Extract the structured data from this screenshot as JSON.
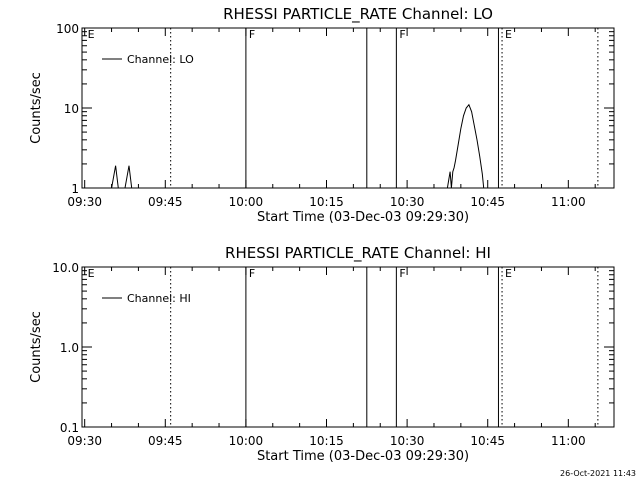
{
  "timestamp": "26-Oct-2021 11:43",
  "chart_data": [
    {
      "type": "line",
      "title": "RHESSI PARTICLE_RATE Channel: LO",
      "xlabel": "Start Time (03-Dec-03 09:29:30)",
      "ylabel": "Counts/sec",
      "yscale": "log",
      "xlim": [
        "09:29:30",
        "11:08:30"
      ],
      "ylim": [
        1,
        100
      ],
      "xticks": [
        "09:30",
        "09:45",
        "10:00",
        "10:15",
        "10:30",
        "10:45",
        "11:00"
      ],
      "yticks": [
        "1",
        "10",
        "100"
      ],
      "legend": {
        "placement": "top-left",
        "entries": [
          "Channel: LO"
        ]
      },
      "series": [
        {
          "name": "Channel: LO",
          "x": [
            "09:29:30",
            "09:35:00",
            "09:35:45",
            "09:36:15",
            "09:36:45",
            "09:37:30",
            "09:38:15",
            "09:38:45",
            "09:39:15",
            "09:40:00",
            "10:37:30",
            "10:38:00",
            "10:38:15",
            "10:38:30",
            "10:38:45",
            "10:39:00",
            "10:39:30",
            "10:40:00",
            "10:40:30",
            "10:41:00",
            "10:41:30",
            "10:42:00",
            "10:42:30",
            "10:43:00",
            "10:43:30",
            "10:44:00",
            "10:44:15",
            "10:44:30",
            "10:44:45",
            "10:45:30"
          ],
          "y": [
            1,
            1,
            1.9,
            1,
            1,
            1,
            1.9,
            1,
            1,
            1,
            1,
            1.6,
            1,
            1.6,
            1.8,
            2.2,
            3.5,
            5.5,
            8,
            10,
            11,
            9,
            6,
            4,
            2.5,
            1.5,
            1,
            1,
            1,
            1
          ]
        }
      ],
      "vlines_solid": [
        "10:00:00",
        "10:22:30",
        "10:28:00",
        "10:47:00"
      ],
      "vlines_dotted": [
        "09:46:00",
        "10:47:40",
        "11:05:30"
      ],
      "markers": [
        {
          "label": "E",
          "x": "09:30:00"
        },
        {
          "label": "F",
          "x": "10:00:00"
        },
        {
          "label": "F",
          "x": "10:28:00"
        },
        {
          "label": "E",
          "x": "10:47:40"
        }
      ]
    },
    {
      "type": "line",
      "title": "RHESSI PARTICLE_RATE Channel: HI",
      "xlabel": "Start Time (03-Dec-03 09:29:30)",
      "ylabel": "Counts/sec",
      "yscale": "log",
      "xlim": [
        "09:29:30",
        "11:08:30"
      ],
      "ylim": [
        0.1,
        10
      ],
      "xticks": [
        "09:30",
        "09:45",
        "10:00",
        "10:15",
        "10:30",
        "10:45",
        "11:00"
      ],
      "yticks": [
        "0.1",
        "1.0",
        "10.0"
      ],
      "legend": {
        "placement": "top-left",
        "entries": [
          "Channel: HI"
        ]
      },
      "series": [
        {
          "name": "Channel: HI",
          "x": [],
          "y": []
        }
      ],
      "vlines_solid": [
        "10:00:00",
        "10:22:30",
        "10:28:00",
        "10:47:00"
      ],
      "vlines_dotted": [
        "09:46:00",
        "10:47:40",
        "11:05:30"
      ],
      "markers": [
        {
          "label": "E",
          "x": "09:30:00"
        },
        {
          "label": "F",
          "x": "10:00:00"
        },
        {
          "label": "F",
          "x": "10:28:00"
        },
        {
          "label": "E",
          "x": "10:47:40"
        }
      ]
    }
  ]
}
